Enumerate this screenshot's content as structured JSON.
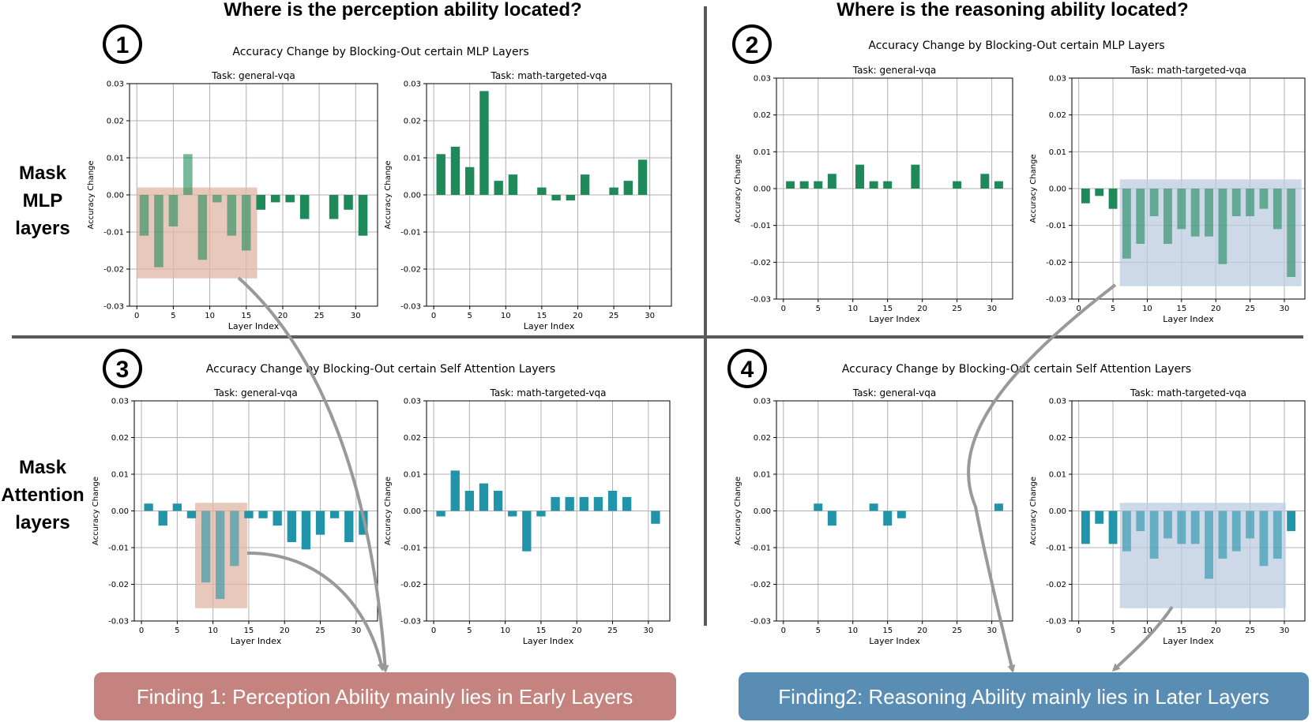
{
  "headings": {
    "left": "Where is the perception ability located?",
    "right": "Where is the reasoning ability located?"
  },
  "row_labels": {
    "mlp": [
      "Mask",
      "MLP",
      "layers"
    ],
    "attn": [
      "Mask",
      "Attention",
      "layers"
    ]
  },
  "quadrants": [
    {
      "badge": "1",
      "suptitle": "Accuracy Change by Blocking-Out certain MLP Layers"
    },
    {
      "badge": "2",
      "suptitle": "Accuracy Change by Blocking-Out certain MLP Layers"
    },
    {
      "badge": "3",
      "suptitle": "Accuracy Change by Blocking-Out certain Self Attention Layers"
    },
    {
      "badge": "4",
      "suptitle": "Accuracy Change by Blocking-Out certain Self Attention Layers"
    }
  ],
  "findings": {
    "left": "Finding 1: Perception Ability mainly lies in Early Layers",
    "right": "Finding2: Reasoning Ability mainly lies in Later Layers"
  },
  "colors": {
    "mlp_bar": "#1e8a5a",
    "attn_bar": "#2294aa",
    "finding_left": "#c4837e",
    "finding_right": "#5a8db4",
    "highlight_red": "#e2b5a6",
    "highlight_blue": "#bccbe0",
    "divider": "#5a5a5a",
    "arrow": "#999999"
  },
  "chart_data": [
    {
      "id": "q1-general",
      "type": "bar",
      "title": "Task: general-vqa",
      "xlabel": "Layer Index",
      "ylabel": "Accuracy Change",
      "xlim": [
        -1,
        33
      ],
      "ylim": [
        -0.03,
        0.03
      ],
      "xticks": [
        0,
        5,
        10,
        15,
        20,
        25,
        30
      ],
      "yticks": [
        -0.03,
        -0.02,
        -0.01,
        0.0,
        0.01,
        0.02,
        0.03
      ],
      "series": [
        {
          "name": "MLP",
          "x": [
            1,
            3,
            5,
            7,
            9,
            11,
            13,
            15,
            17,
            19,
            21,
            23,
            27,
            29,
            31
          ],
          "values": [
            -0.011,
            -0.0195,
            -0.0085,
            0.011,
            -0.0175,
            -0.002,
            -0.011,
            -0.015,
            -0.004,
            -0.002,
            -0.002,
            -0.0065,
            -0.0065,
            -0.004,
            -0.011
          ]
        }
      ],
      "highlight": {
        "x_from": 0,
        "x_to": 16.5,
        "y_from": -0.0225,
        "y_to": 0.002
      }
    },
    {
      "id": "q1-math",
      "type": "bar",
      "title": "Task: math-targeted-vqa",
      "xlabel": "Layer Index",
      "ylabel": "Accuracy Change",
      "xlim": [
        -1,
        33
      ],
      "ylim": [
        -0.03,
        0.03
      ],
      "xticks": [
        0,
        5,
        10,
        15,
        20,
        25,
        30
      ],
      "yticks": [
        -0.03,
        -0.02,
        -0.01,
        0.0,
        0.01,
        0.02,
        0.03
      ],
      "series": [
        {
          "name": "MLP",
          "x": [
            1,
            3,
            5,
            7,
            9,
            11,
            15,
            17,
            19,
            21,
            25,
            27,
            29
          ],
          "values": [
            0.011,
            0.013,
            0.0075,
            0.028,
            0.0038,
            0.0055,
            0.002,
            -0.0015,
            -0.0015,
            0.0055,
            0.002,
            0.0038,
            0.0095
          ]
        }
      ]
    },
    {
      "id": "q2-general",
      "type": "bar",
      "title": "Task: general-vqa",
      "xlabel": "Layer Index",
      "ylabel": "Accuracy Change",
      "xlim": [
        -1,
        33
      ],
      "ylim": [
        -0.03,
        0.03
      ],
      "xticks": [
        0,
        5,
        10,
        15,
        20,
        25,
        30
      ],
      "yticks": [
        -0.03,
        -0.02,
        -0.01,
        0.0,
        0.01,
        0.02,
        0.03
      ],
      "series": [
        {
          "name": "MLP",
          "x": [
            1,
            3,
            5,
            7,
            11,
            13,
            15,
            19,
            25,
            29,
            31
          ],
          "values": [
            0.002,
            0.002,
            0.002,
            0.004,
            0.0065,
            0.002,
            0.002,
            0.0065,
            0.002,
            0.004,
            0.002
          ]
        }
      ]
    },
    {
      "id": "q2-math",
      "type": "bar",
      "title": "Task: math-targeted-vqa",
      "xlabel": "Layer Index",
      "ylabel": "Accuracy Change",
      "xlim": [
        -1,
        33
      ],
      "ylim": [
        -0.03,
        0.03
      ],
      "xticks": [
        0,
        5,
        10,
        15,
        20,
        25,
        30
      ],
      "yticks": [
        -0.03,
        -0.02,
        -0.01,
        0.0,
        0.01,
        0.02,
        0.03
      ],
      "series": [
        {
          "name": "MLP",
          "x": [
            1,
            3,
            5,
            7,
            9,
            11,
            13,
            15,
            17,
            19,
            21,
            23,
            25,
            27,
            29,
            31
          ],
          "values": [
            -0.004,
            -0.002,
            -0.0055,
            -0.019,
            -0.015,
            -0.0075,
            -0.015,
            -0.011,
            -0.013,
            -0.013,
            -0.0205,
            -0.0075,
            -0.0075,
            -0.0055,
            -0.011,
            -0.024
          ]
        }
      ],
      "highlight": {
        "x_from": 6,
        "x_to": 32.5,
        "y_from": -0.0265,
        "y_to": 0.0025
      }
    },
    {
      "id": "q3-general",
      "type": "bar",
      "title": "Task: general-vqa",
      "xlabel": "Layer Index",
      "ylabel": "Accuracy Change",
      "xlim": [
        -1,
        33
      ],
      "ylim": [
        -0.03,
        0.03
      ],
      "xticks": [
        0,
        5,
        10,
        15,
        20,
        25,
        30
      ],
      "yticks": [
        -0.03,
        -0.02,
        -0.01,
        0.0,
        0.01,
        0.02,
        0.03
      ],
      "series": [
        {
          "name": "Self Attention",
          "x": [
            1,
            3,
            5,
            7,
            9,
            11,
            13,
            15,
            17,
            19,
            21,
            23,
            25,
            27,
            29,
            31
          ],
          "values": [
            0.002,
            -0.004,
            0.002,
            -0.002,
            -0.0195,
            -0.024,
            -0.015,
            -0.002,
            -0.002,
            -0.004,
            -0.0085,
            -0.0105,
            -0.0065,
            -0.002,
            -0.0085,
            -0.0065
          ]
        }
      ],
      "highlight": {
        "x_from": 7.5,
        "x_to": 14.8,
        "y_from": -0.0265,
        "y_to": 0.0022
      }
    },
    {
      "id": "q3-math",
      "type": "bar",
      "title": "Task: math-targeted-vqa",
      "xlabel": "Layer Index",
      "ylabel": "Accuracy Change",
      "xlim": [
        -1,
        33
      ],
      "ylim": [
        -0.03,
        0.03
      ],
      "xticks": [
        0,
        5,
        10,
        15,
        20,
        25,
        30
      ],
      "yticks": [
        -0.03,
        -0.02,
        -0.01,
        0.0,
        0.01,
        0.02,
        0.03
      ],
      "series": [
        {
          "name": "Self Attention",
          "x": [
            1,
            3,
            5,
            7,
            9,
            11,
            13,
            15,
            17,
            19,
            21,
            23,
            25,
            27,
            31
          ],
          "values": [
            -0.0015,
            0.011,
            0.0055,
            0.0075,
            0.0055,
            -0.0015,
            -0.011,
            -0.0015,
            0.0038,
            0.0038,
            0.0038,
            0.0038,
            0.0055,
            0.0038,
            -0.0035
          ]
        }
      ]
    },
    {
      "id": "q4-general",
      "type": "bar",
      "title": "Task: general-vqa",
      "xlabel": "Layer Index",
      "ylabel": "Accuracy Change",
      "xlim": [
        -1,
        33
      ],
      "ylim": [
        -0.03,
        0.03
      ],
      "xticks": [
        0,
        5,
        10,
        15,
        20,
        25,
        30
      ],
      "yticks": [
        -0.03,
        -0.02,
        -0.01,
        0.0,
        0.01,
        0.02,
        0.03
      ],
      "series": [
        {
          "name": "Self Attention",
          "x": [
            5,
            7,
            13,
            15,
            17,
            31
          ],
          "values": [
            0.002,
            -0.004,
            0.002,
            -0.004,
            -0.002,
            0.002
          ]
        }
      ]
    },
    {
      "id": "q4-math",
      "type": "bar",
      "title": "Task: math-targeted-vqa",
      "xlabel": "Layer Index",
      "ylabel": "Accuracy Change",
      "xlim": [
        -1,
        33
      ],
      "ylim": [
        -0.03,
        0.03
      ],
      "xticks": [
        0,
        5,
        10,
        15,
        20,
        25,
        30
      ],
      "yticks": [
        -0.03,
        -0.02,
        -0.01,
        0.0,
        0.01,
        0.02,
        0.03
      ],
      "series": [
        {
          "name": "Self Attention",
          "x": [
            1,
            3,
            5,
            7,
            9,
            11,
            13,
            15,
            17,
            19,
            21,
            23,
            25,
            27,
            29,
            31
          ],
          "values": [
            -0.009,
            -0.0035,
            -0.009,
            -0.011,
            -0.0055,
            -0.013,
            -0.0075,
            -0.009,
            -0.009,
            -0.0185,
            -0.013,
            -0.011,
            -0.0075,
            -0.015,
            -0.013,
            -0.0055
          ]
        }
      ],
      "highlight": {
        "x_from": 6,
        "x_to": 30.2,
        "y_from": -0.0265,
        "y_to": 0.0022
      }
    }
  ]
}
